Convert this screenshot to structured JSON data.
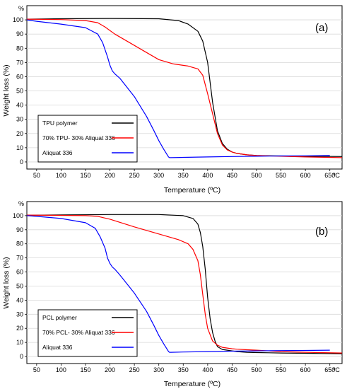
{
  "chart_data": [
    {
      "type": "line",
      "panel_label": "(a)",
      "xlabel": "Temperature (ºC)",
      "ylabel": "Weight loss (%)",
      "x_unit_label": "ºC",
      "y_unit_label": "%",
      "xlim": [
        30,
        675
      ],
      "ylim": [
        -5,
        110
      ],
      "x_ticks": [
        "50",
        "100",
        "150",
        "200",
        "250",
        "300",
        "350",
        "400",
        "450",
        "500",
        "550",
        "600",
        "650"
      ],
      "y_ticks": [
        "0",
        "10",
        "20",
        "30",
        "40",
        "50",
        "60",
        "70",
        "80",
        "90",
        "100"
      ],
      "x_tick_values": [
        50,
        100,
        150,
        200,
        250,
        300,
        350,
        400,
        450,
        500,
        550,
        600,
        650
      ],
      "y_tick_values": [
        0,
        10,
        20,
        30,
        40,
        50,
        60,
        70,
        80,
        90,
        100
      ],
      "legend_position": "bottom-left",
      "series": [
        {
          "name": "TPU polymer",
          "color": "#000000",
          "x": [
            30,
            100,
            200,
            300,
            340,
            360,
            380,
            390,
            400,
            410,
            420,
            430,
            440,
            450,
            460,
            470,
            480,
            500,
            550,
            600,
            675
          ],
          "y": [
            100.5,
            100.8,
            101,
            100.8,
            99.5,
            97,
            92,
            85,
            70,
            42,
            22,
            13,
            9,
            7,
            6,
            5.5,
            5,
            4.5,
            4.2,
            4,
            3.8
          ]
        },
        {
          "name": "70% TPU- 30% Aliquat 336",
          "color": "#ff0000",
          "x": [
            30,
            100,
            150,
            175,
            190,
            210,
            240,
            270,
            300,
            330,
            360,
            380,
            390,
            400,
            410,
            420,
            430,
            440,
            450,
            460,
            480,
            500,
            550,
            600,
            675
          ],
          "y": [
            100.5,
            100.2,
            99.5,
            98,
            95,
            90,
            84,
            78,
            72,
            69,
            67.5,
            65.5,
            61,
            48,
            34,
            20,
            12,
            8.5,
            7,
            6,
            5,
            4.5,
            4,
            3.5,
            3
          ]
        },
        {
          "name": "Aliquat 336",
          "color": "#0000ff",
          "x": [
            30,
            50,
            100,
            150,
            175,
            185,
            195,
            200,
            205,
            210,
            220,
            250,
            275,
            290,
            300,
            310,
            320,
            322,
            325,
            350,
            400,
            450,
            500,
            550,
            600,
            650
          ],
          "y": [
            100,
            99,
            97,
            94.5,
            90,
            84,
            74,
            68,
            64,
            62,
            59,
            46,
            32,
            22,
            15,
            9,
            3.5,
            3,
            3,
            3.2,
            3.5,
            3.8,
            4,
            4.2,
            4.3,
            4.5
          ]
        }
      ]
    },
    {
      "type": "line",
      "panel_label": "(b)",
      "xlabel": "Temperature (ºC)",
      "ylabel": "Weight loss (%)",
      "x_unit_label": "ºC",
      "y_unit_label": "%",
      "xlim": [
        30,
        675
      ],
      "ylim": [
        -5,
        110
      ],
      "x_ticks": [
        "50",
        "100",
        "150",
        "200",
        "250",
        "300",
        "350",
        "400",
        "450",
        "500",
        "550",
        "600",
        "650"
      ],
      "y_ticks": [
        "0",
        "10",
        "20",
        "30",
        "40",
        "50",
        "60",
        "70",
        "80",
        "90",
        "100"
      ],
      "x_tick_values": [
        50,
        100,
        150,
        200,
        250,
        300,
        350,
        400,
        450,
        500,
        550,
        600,
        650
      ],
      "y_tick_values": [
        0,
        10,
        20,
        30,
        40,
        50,
        60,
        70,
        80,
        90,
        100
      ],
      "legend_position": "bottom-left",
      "series": [
        {
          "name": "PCL polymer",
          "color": "#000000",
          "x": [
            30,
            100,
            200,
            300,
            350,
            370,
            380,
            385,
            390,
            395,
            400,
            405,
            410,
            415,
            420,
            430,
            440,
            450,
            460,
            480,
            500,
            550,
            600,
            675
          ],
          "y": [
            100.3,
            100.5,
            100.8,
            100.8,
            100,
            98,
            94,
            88,
            78,
            62,
            42,
            27,
            17,
            11,
            7,
            5,
            4.5,
            4,
            3.5,
            3,
            2.8,
            2.5,
            2.3,
            2
          ]
        },
        {
          "name": "70% PCL- 30% Aliquat 336",
          "color": "#ff0000",
          "x": [
            30,
            100,
            150,
            175,
            200,
            250,
            300,
            340,
            360,
            370,
            380,
            385,
            390,
            395,
            400,
            410,
            420,
            430,
            440,
            450,
            460,
            480,
            500,
            550,
            600,
            675
          ],
          "y": [
            100.4,
            100.2,
            100,
            99.5,
            97.5,
            92,
            87,
            83,
            80,
            76,
            68,
            58,
            44,
            30,
            20,
            11,
            8,
            6.5,
            6,
            5.5,
            5.2,
            4.8,
            4.5,
            3.5,
            3,
            2.5
          ]
        },
        {
          "name": "Aliquat 336",
          "color": "#0000ff",
          "x": [
            30,
            50,
            100,
            150,
            170,
            180,
            190,
            195,
            200,
            205,
            210,
            220,
            250,
            275,
            290,
            300,
            310,
            320,
            322,
            325,
            350,
            400,
            450,
            500,
            550,
            600,
            650
          ],
          "y": [
            100,
            99.5,
            98,
            95,
            91,
            85,
            77,
            70,
            66,
            63.5,
            62,
            58,
            45,
            32,
            22,
            15,
            9,
            3.5,
            3,
            3,
            3.2,
            3.5,
            3.8,
            4,
            4.2,
            4.3,
            4.5
          ]
        }
      ]
    }
  ]
}
